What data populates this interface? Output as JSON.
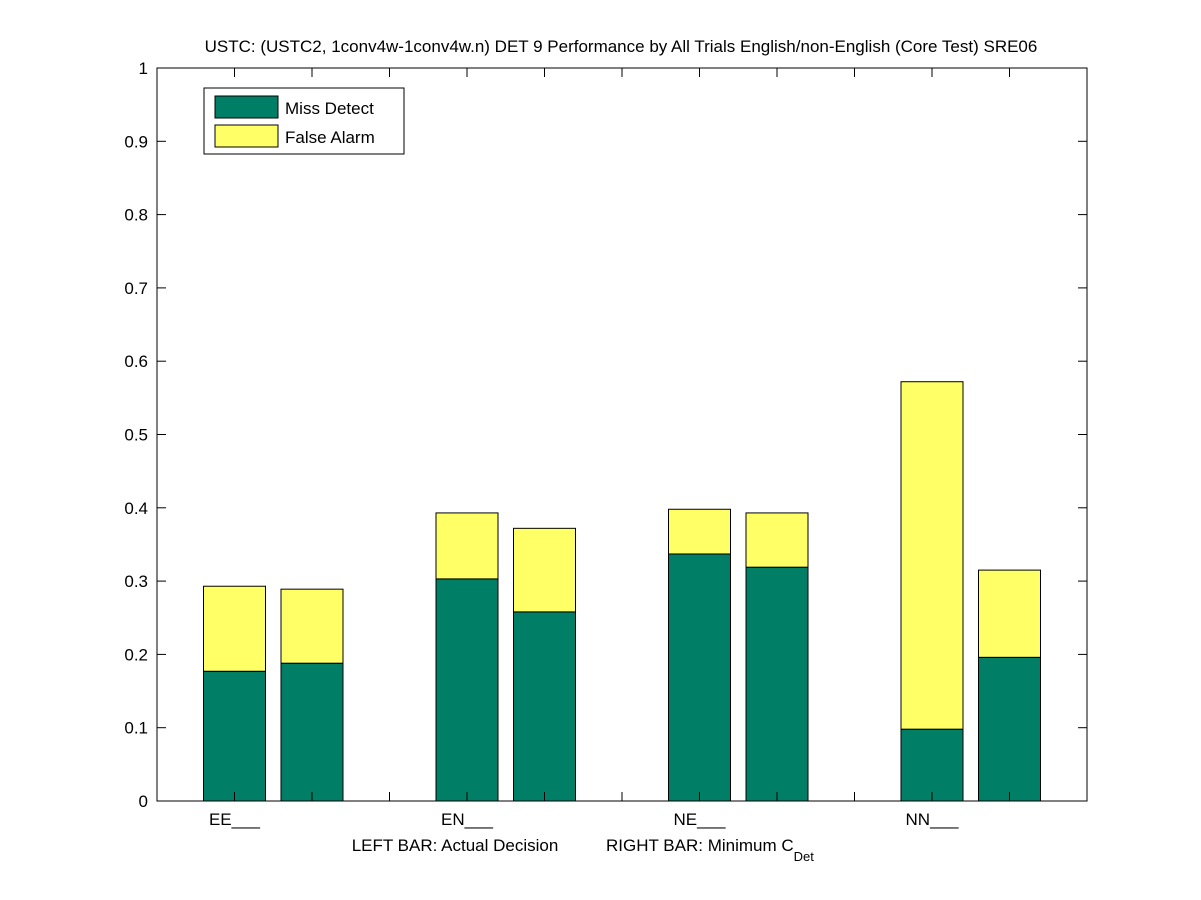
{
  "chart_data": {
    "type": "bar",
    "stacked": true,
    "title": "USTC: (USTC2, 1conv4w-1conv4w.n) DET 9 Performance by All Trials English/non-English (Core Test) SRE06",
    "xlabel_left": "LEFT BAR: Actual Decision",
    "xlabel_right": "RIGHT BAR: Minimum C",
    "xlabel_right_sub": "Det",
    "ylim": [
      0,
      1
    ],
    "yticks": [
      "0",
      "0.1",
      "0.2",
      "0.3",
      "0.4",
      "0.5",
      "0.6",
      "0.7",
      "0.8",
      "0.9",
      "1"
    ],
    "grid": false,
    "legend_position": "top-left",
    "categories": [
      "EE___",
      "EN___",
      "NE___",
      "NN___"
    ],
    "bar_roles": [
      "Actual Decision",
      "Minimum CDet"
    ],
    "series": [
      {
        "name": "Miss Detect",
        "color": "#007f66",
        "actual": [
          0.177,
          0.303,
          0.337,
          0.098
        ],
        "minimum": [
          0.188,
          0.258,
          0.319,
          0.196
        ]
      },
      {
        "name": "False Alarm",
        "color": "#ffff66",
        "actual": [
          0.116,
          0.09,
          0.061,
          0.474
        ],
        "minimum": [
          0.101,
          0.114,
          0.074,
          0.119
        ]
      }
    ]
  }
}
